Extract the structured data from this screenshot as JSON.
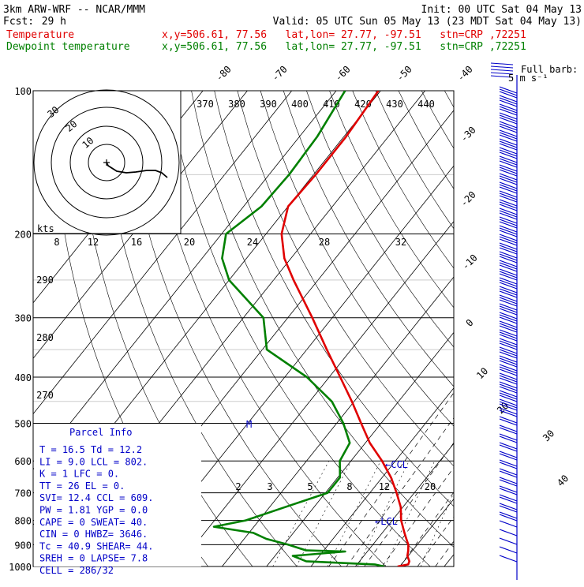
{
  "header": {
    "model": "3km ARW-WRF -- NCAR/MMM",
    "init": "Init: 00 UTC Sat 04 May 13",
    "fcst_label": "Fcst:",
    "fcst_value": "29 h",
    "valid": "Valid: 05 UTC Sun 05 May 13 (23 MDT Sat 04 May 13)",
    "temp_label": "Temperature",
    "temp_info": "x,y=506.61, 77.56   lat,lon= 27.77, -97.51   stn=CRP ,72251",
    "dew_label": "Dewpoint temperature",
    "dew_info": "x,y=506.61, 77.56   lat,lon= 27.77, -97.51   stn=CRP ,72251",
    "barb_note_1": "Full barb:",
    "barb_note_2": "5 m s⁻¹"
  },
  "parcel": {
    "title": "Parcel Info",
    "rows": [
      "T  =   16.5  Td =  12.2",
      "LI =    9.0  LCL =  802.",
      "K  =      1  LFC =    0.",
      "TT =     26  EL  =    0.",
      "SVI=   12.4  CCL =  609.",
      "PW =   1.81  YGP =   0.0",
      "CAPE =     0  SWEAT=  40.",
      "CIN  =     0  HWBZ= 3646.",
      "Tc   =  40.9  SHEAR=  44.",
      "SREH =     0  LAPSE=  7.8",
      "CELL = 286/32"
    ]
  },
  "annotations": {
    "ccl": "CCL",
    "lcl": "LCL",
    "hodo_units": "kts",
    "m_marker": "M"
  },
  "colors": {
    "temperature": "#e00000",
    "dewpoint": "#008000",
    "grid": "#000000",
    "barbs": "#0000c8",
    "hodograph": "#000000"
  },
  "chart_data": {
    "type": "line",
    "title": "3km ARW-WRF -- NCAR/MMM",
    "xlabel": "",
    "ylabel": "",
    "y_scale": "log-pressure",
    "pressure_levels_hPa": [
      100,
      200,
      300,
      400,
      500,
      600,
      700,
      800,
      900,
      1000
    ],
    "isotherm_labels_C": [
      -80,
      -70,
      -60,
      -50,
      -40,
      -30,
      -20,
      -10,
      0,
      10,
      20,
      30,
      40
    ],
    "theta_labels_K": [
      370,
      380,
      390,
      400,
      410,
      420,
      430,
      440
    ],
    "mixing_ratio_labels_upper": [
      8,
      12,
      16,
      20,
      24,
      28,
      32
    ],
    "mixing_ratio_labels_lower": [
      2,
      3,
      5,
      8,
      12,
      20
    ],
    "theta_e_labels": [
      290,
      280,
      270
    ],
    "hodograph_ring_labels": [
      30,
      20,
      10
    ],
    "series": [
      {
        "name": "Temperature",
        "pressure_hPa": [
          1000,
          990,
          975,
          950,
          925,
          900,
          875,
          850,
          800,
          750,
          700,
          650,
          600,
          550,
          500,
          450,
          400,
          350,
          300,
          250,
          225,
          200,
          175,
          150,
          125,
          100
        ],
        "temperature_C": [
          19.5,
          21.5,
          21.2,
          19.8,
          19.0,
          18.0,
          16.5,
          15.0,
          12.0,
          9.5,
          6.0,
          2.0,
          -3.0,
          -9.0,
          -14.5,
          -20.5,
          -27.5,
          -35.5,
          -44.5,
          -55.5,
          -61.5,
          -66.5,
          -70.0,
          -69.5,
          -69.5,
          -70.5
        ]
      },
      {
        "name": "Dewpoint temperature",
        "pressure_hPa": [
          1000,
          990,
          975,
          950,
          930,
          925,
          900,
          875,
          850,
          825,
          800,
          750,
          700,
          650,
          600,
          550,
          500,
          450,
          400,
          350,
          300,
          250,
          225,
          200,
          175,
          150,
          125,
          100
        ],
        "temperature_C": [
          16.5,
          14.0,
          -2.0,
          -6.0,
          5.0,
          -4.0,
          -9.0,
          -15.0,
          -19.0,
          -29.0,
          -23.0,
          -16.5,
          -9.5,
          -9.5,
          -12.5,
          -13.5,
          -18.5,
          -25.0,
          -35.0,
          -49.0,
          -55.5,
          -70.0,
          -75.5,
          -79.0,
          -76.0,
          -75.5,
          -76.0,
          -78.0
        ]
      }
    ]
  }
}
